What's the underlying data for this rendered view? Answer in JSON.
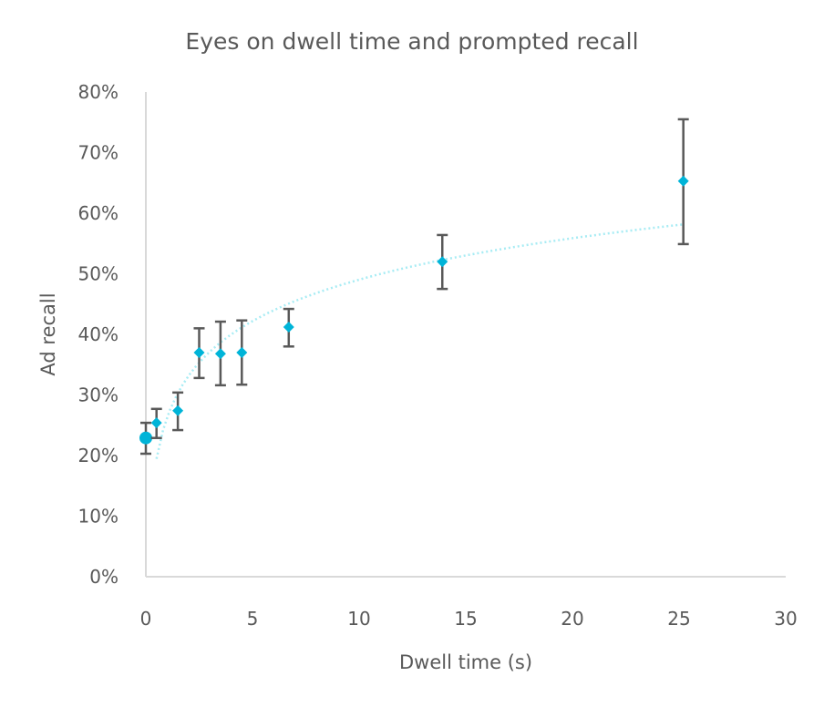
{
  "chart_data": {
    "type": "scatter",
    "title": "Eyes on dwell time and prompted recall",
    "xlabel": "Dwell time (s)",
    "ylabel": "Ad recall",
    "xlim": [
      0,
      30
    ],
    "ylim": [
      0,
      80
    ],
    "xticks": [
      "0",
      "5",
      "10",
      "15",
      "20",
      "25",
      "30"
    ],
    "xtick_values": [
      0,
      5,
      10,
      15,
      20,
      25,
      30
    ],
    "yticks": [
      "0%",
      "10%",
      "20%",
      "30%",
      "40%",
      "50%",
      "60%",
      "70%",
      "80%"
    ],
    "ytick_values": [
      0,
      10,
      20,
      30,
      40,
      50,
      60,
      70,
      80
    ],
    "grid": false,
    "points": [
      {
        "x": 0,
        "y": 22.9,
        "err_low": 20.3,
        "err_high": 25.4,
        "marker": "circle"
      },
      {
        "x": 0.5,
        "y": 25.4,
        "err_low": 22.9,
        "err_high": 27.7,
        "marker": "diamond"
      },
      {
        "x": 1.5,
        "y": 27.4,
        "err_low": 24.2,
        "err_high": 30.4,
        "marker": "diamond"
      },
      {
        "x": 2.5,
        "y": 37.0,
        "err_low": 32.8,
        "err_high": 41.0,
        "marker": "diamond"
      },
      {
        "x": 3.5,
        "y": 36.8,
        "err_low": 31.6,
        "err_high": 42.1,
        "marker": "diamond"
      },
      {
        "x": 4.5,
        "y": 37.0,
        "err_low": 31.7,
        "err_high": 42.3,
        "marker": "diamond"
      },
      {
        "x": 6.7,
        "y": 41.2,
        "err_low": 38.0,
        "err_high": 44.2,
        "marker": "diamond"
      },
      {
        "x": 13.9,
        "y": 52.0,
        "err_low": 47.5,
        "err_high": 56.4,
        "marker": "diamond"
      },
      {
        "x": 25.2,
        "y": 65.3,
        "err_low": 54.9,
        "err_high": 75.5,
        "marker": "diamond"
      }
    ],
    "trendline": {
      "type": "logarithmic",
      "a": 26.3,
      "b": 9.87,
      "x_range": [
        0.5,
        25.2
      ]
    },
    "colors": {
      "marker": "#00b4d8",
      "trend": "#a8ecf4",
      "error": "#595959",
      "axis": "#d9d9d9"
    }
  }
}
